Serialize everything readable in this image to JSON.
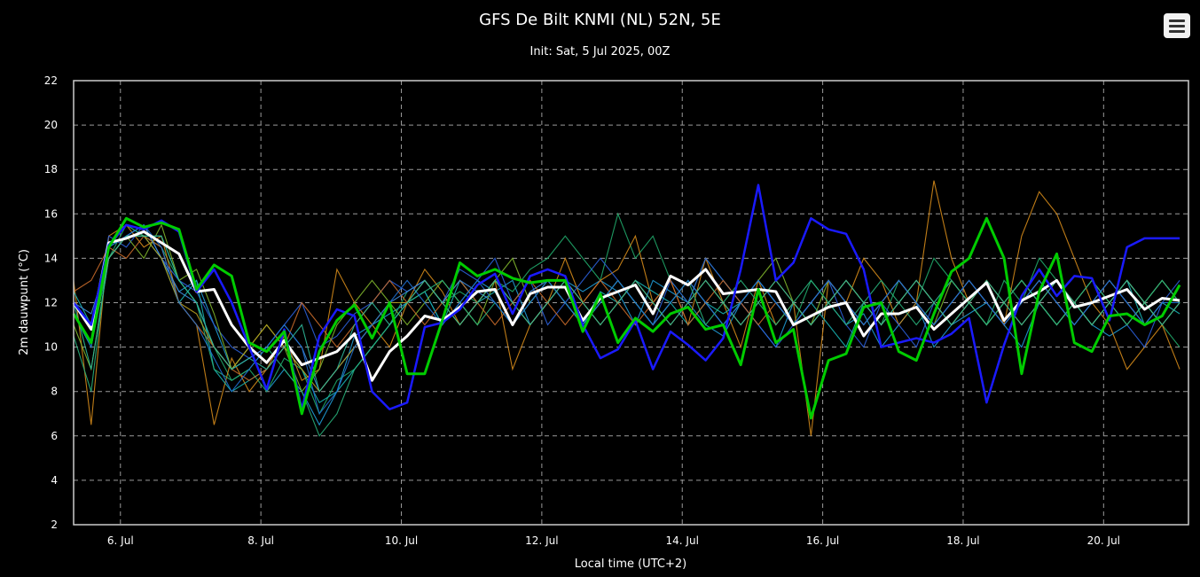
{
  "menu": {
    "icon": "hamburger-menu-icon"
  },
  "chart_data": {
    "type": "line",
    "title": "GFS De Bilt KNMI (NL) 52N, 5E",
    "subtitle": "Init: Sat, 5 Jul 2025, 00Z",
    "xlabel": "Local time (UTC+2)",
    "ylabel": "2m dauwpunt (°C)",
    "ylim": [
      2,
      22
    ],
    "yticks": [
      2,
      4,
      6,
      8,
      10,
      12,
      14,
      16,
      18,
      20,
      22
    ],
    "xlim": [
      "2025-07-05 08:00",
      "2025-07-21 05:00"
    ],
    "xticks": [
      {
        "value": "2025-07-06",
        "label": "6. Jul"
      },
      {
        "value": "2025-07-08",
        "label": "8. Jul"
      },
      {
        "value": "2025-07-10",
        "label": "10. Jul"
      },
      {
        "value": "2025-07-12",
        "label": "12. Jul"
      },
      {
        "value": "2025-07-14",
        "label": "14. Jul"
      },
      {
        "value": "2025-07-16",
        "label": "16. Jul"
      },
      {
        "value": "2025-07-18",
        "label": "18. Jul"
      },
      {
        "value": "2025-07-20",
        "label": "20. Jul"
      }
    ],
    "grid": true,
    "x_step_hours": 6,
    "x_first": "2025-07-05 08:00",
    "ensemble_colors": [
      "#1f9bd6",
      "#20a86a",
      "#d48a1a",
      "#2b5fd9",
      "#18b3b3",
      "#7fb52c",
      "#c86a2a",
      "#3f8ad8",
      "#28b07a",
      "#b8a020",
      "#1f6fd0",
      "#2fb89a"
    ],
    "ensemble": [
      [
        12,
        11,
        14.5,
        15,
        15.5,
        14,
        12.5,
        13,
        11,
        9,
        10,
        8,
        9,
        8,
        6.5,
        8,
        10.5,
        11,
        11.5,
        12,
        12.5,
        11,
        12,
        13,
        12.5,
        13,
        11,
        12,
        13,
        12.5,
        13,
        12.5,
        11,
        13,
        12.5,
        12,
        11,
        10.5,
        12,
        11,
        10,
        12,
        11,
        12,
        11,
        11.5,
        10,
        11,
        12,
        10,
        11,
        11.5,
        12,
        11,
        10,
        12,
        11,
        12,
        11,
        10.5,
        11,
        12,
        13,
        12
      ],
      [
        11.5,
        10,
        14,
        15.5,
        15,
        14.5,
        13,
        12,
        10,
        8.5,
        9,
        8,
        9.5,
        9,
        7,
        8.5,
        9,
        10,
        11,
        12.5,
        13,
        12,
        12.5,
        12,
        13,
        12.5,
        13.5,
        14,
        15,
        14,
        13,
        16,
        14,
        15,
        13,
        12,
        14,
        13,
        12,
        13,
        12,
        11,
        13,
        12,
        13,
        12,
        11,
        13,
        12,
        14,
        13,
        12,
        11,
        13,
        12,
        14,
        13,
        12,
        11,
        12,
        13,
        12,
        11,
        10
      ],
      [
        13,
        6.5,
        15,
        15.5,
        14.5,
        15,
        12,
        11,
        6.5,
        9.5,
        8,
        9,
        10.5,
        8.5,
        9,
        13.5,
        12,
        11,
        10,
        12,
        13.5,
        12.5,
        11,
        12,
        13,
        9,
        11,
        12,
        14,
        12,
        13,
        13.5,
        15,
        12,
        13,
        11,
        14,
        12,
        10,
        13,
        11,
        12,
        6,
        13,
        12,
        14,
        13,
        11,
        12,
        17.5,
        14,
        12,
        13,
        11,
        15,
        17,
        16,
        14,
        12,
        11,
        9,
        10,
        11,
        9
      ],
      [
        12,
        11,
        15,
        14.5,
        15.5,
        14,
        13,
        12.5,
        11,
        10,
        9.5,
        10,
        11,
        12,
        10,
        10.5,
        11.5,
        12,
        13,
        12.5,
        13,
        12,
        13.5,
        13,
        14,
        12,
        13,
        11,
        12,
        13,
        14,
        13,
        12,
        11,
        13,
        12,
        14,
        13,
        12,
        11,
        10,
        11,
        12,
        13,
        11,
        10,
        12,
        11,
        10,
        12,
        13,
        12,
        11,
        12,
        13,
        12,
        11,
        12,
        13,
        12,
        11,
        10,
        12,
        13
      ],
      [
        12.5,
        11,
        14.5,
        15,
        15,
        14,
        12,
        13,
        9,
        8,
        8.5,
        9,
        10,
        9,
        7.5,
        8,
        9,
        10,
        11,
        12,
        12.5,
        11,
        13,
        12,
        12.5,
        11,
        12,
        13,
        12,
        11,
        12.5,
        12,
        13,
        12.5,
        12,
        11,
        12,
        11.5,
        12,
        13,
        12,
        11,
        12,
        11,
        10,
        12,
        11,
        12,
        13,
        12,
        11,
        12,
        11,
        12,
        13,
        12,
        11,
        12,
        11,
        12,
        13,
        11,
        12,
        11.5
      ],
      [
        11,
        9,
        14,
        15,
        14,
        15.5,
        13,
        13.5,
        11.5,
        9,
        10,
        11,
        10,
        8,
        9,
        11,
        12,
        13,
        12,
        11,
        12,
        13,
        12,
        11,
        13,
        14,
        12,
        13,
        12,
        11,
        12,
        13,
        12,
        11,
        12,
        13,
        12,
        11,
        12,
        13,
        14,
        12,
        11,
        13,
        12,
        11,
        12,
        13,
        12,
        11,
        13,
        12,
        11,
        12,
        13,
        12,
        11,
        12,
        13,
        12,
        11,
        12,
        13,
        12
      ],
      [
        12.5,
        13,
        14.5,
        14,
        15,
        14.5,
        12,
        11,
        10,
        9,
        8.5,
        9,
        10,
        12,
        11,
        10,
        11,
        12,
        13,
        12,
        11,
        12,
        13,
        12,
        11,
        12,
        13,
        12,
        11,
        12,
        13,
        12,
        11,
        12,
        13,
        11,
        12,
        13,
        12,
        11,
        12,
        11,
        12,
        13,
        12,
        11,
        12,
        13,
        12,
        11,
        12,
        13,
        12,
        11,
        12,
        13,
        12,
        11,
        12,
        13,
        12,
        11,
        12,
        12
      ],
      [
        12,
        11.5,
        14,
        15,
        15.5,
        14,
        12.5,
        12,
        10,
        9,
        9.5,
        10,
        11,
        10,
        8,
        9,
        10,
        11,
        12,
        12.5,
        13,
        12,
        13,
        12.5,
        12,
        11,
        12.5,
        13,
        12,
        11,
        12,
        13,
        12,
        11,
        12,
        13,
        12,
        11,
        12,
        13,
        12,
        11,
        12,
        13,
        12,
        11,
        12,
        13,
        12,
        11,
        12,
        13,
        12,
        11,
        12,
        13,
        12,
        11,
        12,
        13,
        12,
        11,
        12,
        12
      ],
      [
        10.5,
        8,
        14.5,
        15.5,
        15,
        15,
        13,
        12,
        9,
        8.5,
        9,
        10,
        9,
        8,
        6,
        7,
        9,
        10,
        11,
        12,
        12.5,
        13,
        12,
        11,
        12,
        11,
        12,
        13,
        12,
        11,
        12,
        13,
        12,
        11,
        12,
        13,
        11,
        12,
        13,
        12,
        11,
        12,
        13,
        12,
        11,
        12,
        13,
        12,
        11,
        12,
        13,
        12,
        11,
        12,
        13,
        12,
        11,
        12,
        13,
        12,
        11,
        12,
        13,
        12
      ],
      [
        12,
        11,
        14,
        15,
        15,
        14,
        12,
        11.5,
        10,
        9,
        10,
        11,
        10,
        9,
        8,
        9,
        10,
        11,
        12,
        12,
        13,
        12,
        11,
        12,
        13,
        12,
        11,
        12,
        13,
        12,
        11,
        12,
        13,
        12,
        11,
        12,
        13,
        12,
        11,
        12,
        13,
        12,
        11,
        12,
        13,
        12,
        11,
        12,
        13,
        12,
        11,
        12,
        13,
        12,
        11,
        12,
        13,
        12,
        11,
        12,
        13,
        12,
        11,
        12
      ],
      [
        11.5,
        10,
        14.5,
        15,
        15.5,
        14.5,
        12,
        11,
        9.5,
        8,
        9,
        10,
        11,
        10,
        7,
        8,
        10,
        11,
        12,
        13,
        12,
        11,
        12,
        13,
        12,
        11,
        12,
        13,
        12,
        11,
        12,
        13,
        12,
        11,
        12,
        13,
        12,
        11,
        12,
        13,
        12,
        11,
        12,
        13,
        12,
        11,
        12,
        13,
        12,
        11,
        12,
        13,
        12,
        11,
        12,
        13,
        12,
        11,
        12,
        13,
        12,
        11,
        12,
        12
      ],
      [
        12,
        9,
        14,
        15,
        15,
        15,
        13,
        12,
        10,
        9,
        9.5,
        9,
        10,
        11,
        8,
        9,
        11,
        12,
        11,
        12,
        13,
        12,
        11,
        12,
        13,
        12,
        11,
        12,
        13,
        12,
        11,
        12,
        13,
        12,
        11,
        12,
        13,
        12,
        11,
        12,
        13,
        12,
        11,
        12,
        13,
        12,
        11,
        12,
        13,
        12,
        11,
        12,
        13,
        12,
        11,
        12,
        13,
        12,
        11,
        12,
        13,
        12,
        11,
        12
      ]
    ],
    "series": [
      {
        "color": "#ffffff",
        "width": 3,
        "values": [
          12,
          10.8,
          14.7,
          14.9,
          15.2,
          14.7,
          14.2,
          12.5,
          12.6,
          11,
          10,
          9.3,
          10.3,
          9.2,
          9.5,
          9.8,
          10.6,
          8.5,
          9.8,
          10.5,
          11.4,
          11.2,
          11.8,
          12.5,
          12.6,
          11,
          12.4,
          12.7,
          12.7,
          11.2,
          12.2,
          12.5,
          12.8,
          11.5,
          13.2,
          12.8,
          13.5,
          12.4,
          12.5,
          12.6,
          12.5,
          11,
          11.4,
          11.8,
          12,
          10.5,
          11.5,
          11.5,
          11.8,
          10.8,
          11.5,
          12.2,
          12.9,
          11.2,
          12.1,
          12.5,
          13,
          11.8,
          12,
          12.3,
          12.6,
          11.7,
          12.2,
          12.1
        ]
      },
      {
        "color": "#1a1aff",
        "width": 2.5,
        "values": [
          12,
          11,
          14.6,
          15.5,
          15.3,
          15.7,
          15.2,
          12.5,
          13.5,
          12,
          10,
          8.1,
          10.8,
          7.2,
          10.5,
          11.7,
          11.4,
          8,
          7.2,
          7.5,
          10.9,
          11.1,
          11.7,
          12.8,
          13.3,
          11.5,
          13.2,
          13.5,
          13.2,
          11,
          9.5,
          9.9,
          11.2,
          9,
          10.7,
          10.1,
          9.4,
          10.4,
          13.5,
          17.3,
          13,
          13.8,
          15.8,
          15.3,
          15.1,
          13.5,
          10,
          10.2,
          10.4,
          10.2,
          10.6,
          11.3,
          7.5,
          10.1,
          12.3,
          13.5,
          12.3,
          13.2,
          13.1,
          11.2,
          14.5,
          14.9,
          14.9,
          14.9
        ]
      },
      {
        "color": "#00cc00",
        "width": 3,
        "values": [
          11.5,
          10.2,
          14.5,
          15.8,
          15.4,
          15.6,
          15.3,
          12.6,
          13.7,
          13.2,
          10.2,
          9.8,
          10.7,
          7,
          9.8,
          11.2,
          11.9,
          10.4,
          12,
          8.8,
          8.8,
          11.2,
          13.8,
          13.2,
          13.5,
          13.1,
          12.9,
          13,
          13,
          10.7,
          12.4,
          10.2,
          11.3,
          10.7,
          11.5,
          11.8,
          10.8,
          11,
          9.2,
          12.6,
          10.2,
          10.8,
          6.8,
          9.4,
          9.7,
          11.8,
          12,
          9.8,
          9.4,
          11.5,
          13.4,
          14,
          15.8,
          14,
          8.8,
          12.5,
          14.2,
          10.2,
          9.8,
          11.4,
          11.5,
          11,
          11.4,
          12.8
        ]
      }
    ]
  }
}
